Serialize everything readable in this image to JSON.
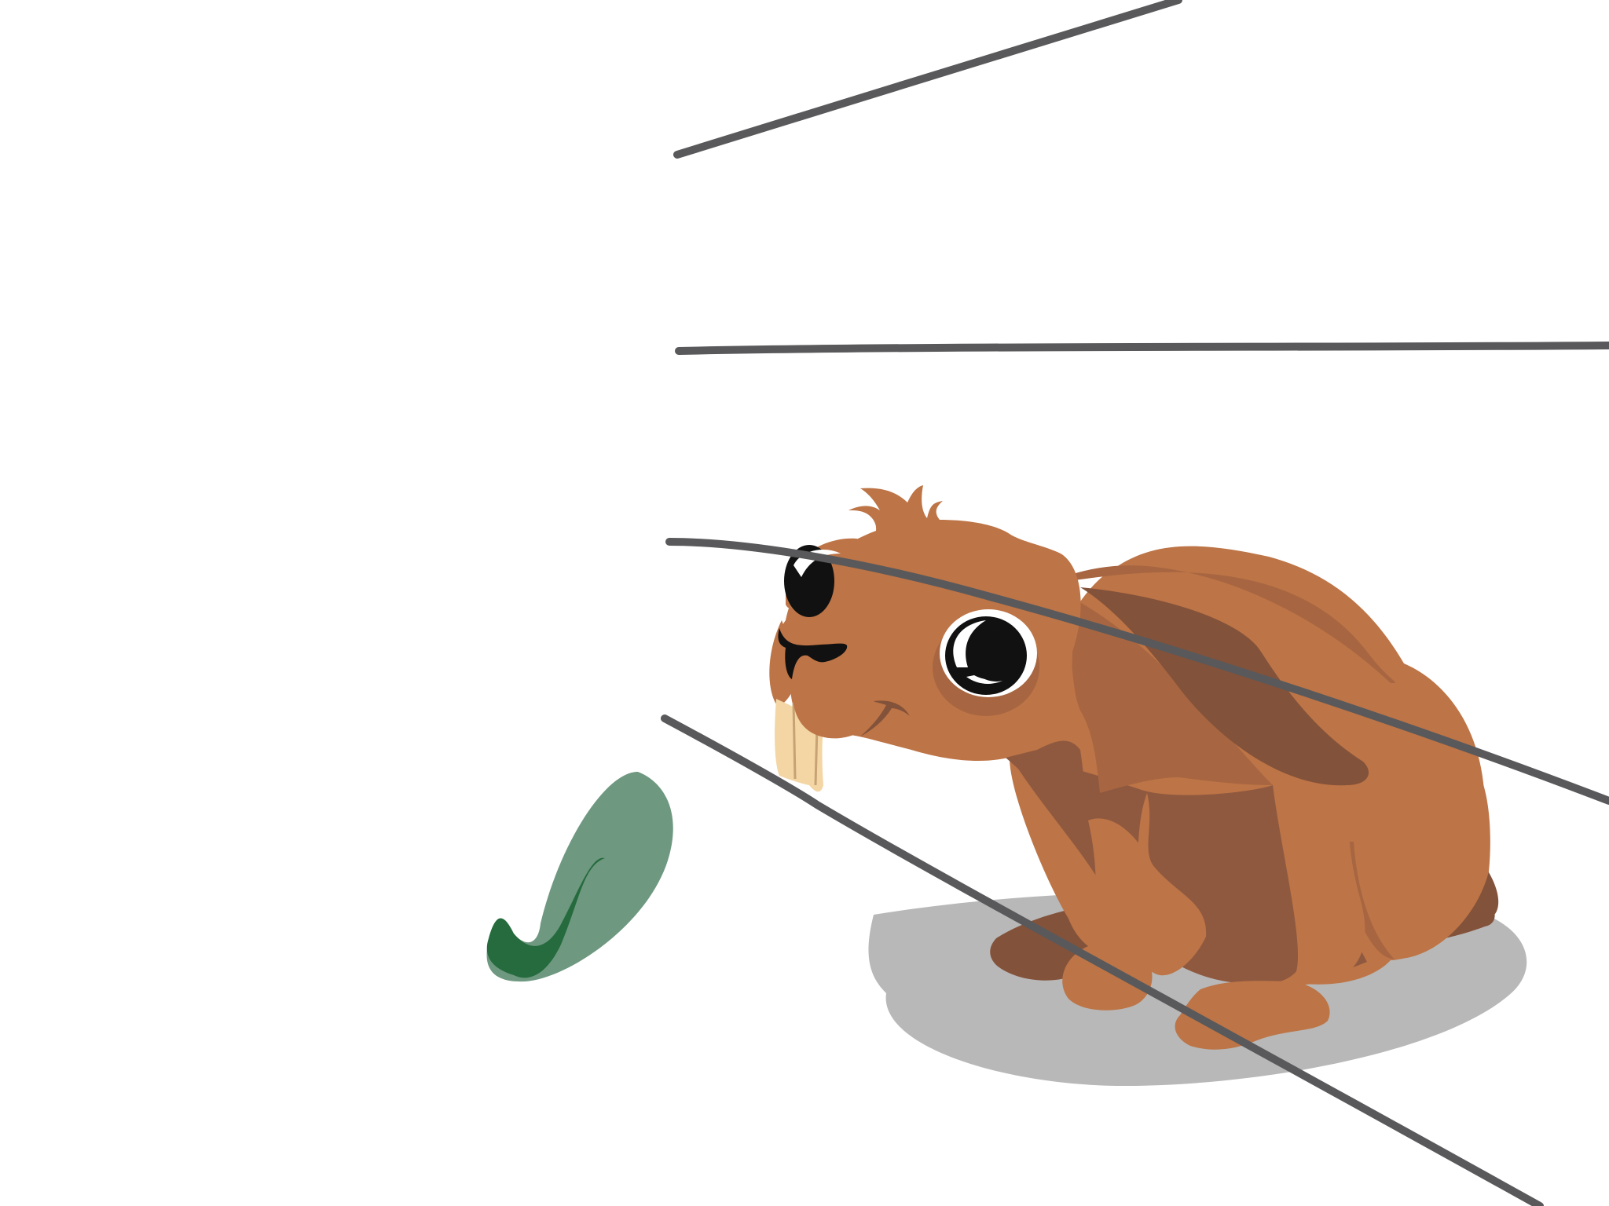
{
  "scene": {
    "description_icon": "rabbit-illustration",
    "colors": {
      "background": "#ffffff",
      "fur": "#bd7446",
      "fur_mid": "#a76641",
      "fur_dark": "#8f5940",
      "fur_darkest": "#83523a",
      "shadow": "#b8b8b8",
      "eye_black": "#111111",
      "eye_white": "#ffffff",
      "teeth": "#f4d5a4",
      "teeth_line": "#c6a274",
      "leaf_light": "#6f9880",
      "leaf_dark": "#256b3d",
      "rain": "#59595b"
    }
  }
}
